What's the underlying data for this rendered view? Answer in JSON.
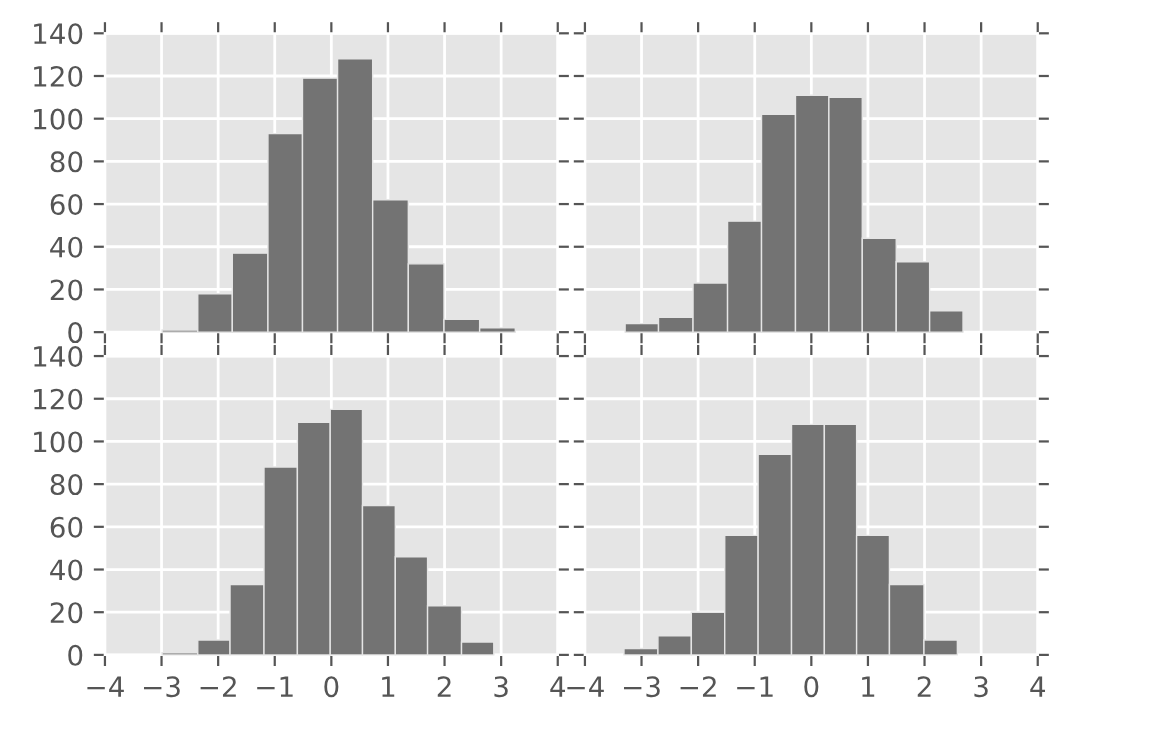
{
  "chart_data": [
    {
      "type": "histogram",
      "bins": [
        -2.99,
        -2.36,
        -1.75,
        -1.12,
        -0.51,
        0.11,
        0.73,
        1.36,
        1.99,
        2.62,
        3.25
      ],
      "values": [
        1,
        18,
        37,
        93,
        119,
        128,
        62,
        32,
        6,
        2
      ],
      "color": "#737373",
      "xlim": [
        -4,
        4
      ],
      "xticks": [
        -4,
        -3,
        -2,
        -1,
        0,
        1,
        2,
        3,
        4
      ],
      "ylim": [
        0,
        140
      ],
      "yticks": [
        0,
        20,
        40,
        60,
        80,
        100,
        120,
        140
      ],
      "grid": true,
      "tick_labels": "y"
    },
    {
      "type": "histogram",
      "bins": [
        -3.29,
        -2.7,
        -2.09,
        -1.48,
        -0.88,
        -0.28,
        0.31,
        0.9,
        1.5,
        2.09,
        2.68
      ],
      "values": [
        4,
        7,
        23,
        52,
        102,
        111,
        110,
        44,
        33,
        10
      ],
      "color": "#737373",
      "xlim": [
        -4,
        4
      ],
      "xticks": [
        -4,
        -3,
        -2,
        -1,
        0,
        1,
        2,
        3,
        4
      ],
      "ylim": [
        0,
        140
      ],
      "yticks": [
        0,
        20,
        40,
        60,
        80,
        100,
        120,
        140
      ],
      "grid": true,
      "tick_labels": false
    },
    {
      "type": "histogram",
      "bins": [
        -2.99,
        -2.36,
        -1.79,
        -1.19,
        -0.6,
        -0.02,
        0.55,
        1.13,
        1.7,
        2.3,
        2.87
      ],
      "values": [
        1,
        7,
        33,
        88,
        109,
        115,
        70,
        46,
        23,
        6
      ],
      "color": "#737373",
      "xlim": [
        -4,
        4
      ],
      "xticks": [
        -4,
        -3,
        -2,
        -1,
        0,
        1,
        2,
        3,
        4
      ],
      "ylim": [
        0,
        140
      ],
      "yticks": [
        0,
        20,
        40,
        60,
        80,
        100,
        120,
        140
      ],
      "grid": true
    },
    {
      "type": "histogram",
      "bins": [
        -3.31,
        -2.71,
        -2.12,
        -1.53,
        -0.94,
        -0.35,
        0.23,
        0.8,
        1.38,
        1.99,
        2.58
      ],
      "values": [
        3,
        9,
        20,
        56,
        94,
        108,
        108,
        56,
        33,
        7
      ],
      "color": "#737373",
      "xlim": [
        -4,
        4
      ],
      "xticks": [
        -4,
        -3,
        -2,
        -1,
        0,
        1,
        2,
        3,
        4
      ],
      "ylim": [
        0,
        140
      ],
      "yticks": [
        0,
        20,
        40,
        60,
        80,
        100,
        120,
        140
      ],
      "grid": true,
      "tick_labels": "x"
    }
  ]
}
